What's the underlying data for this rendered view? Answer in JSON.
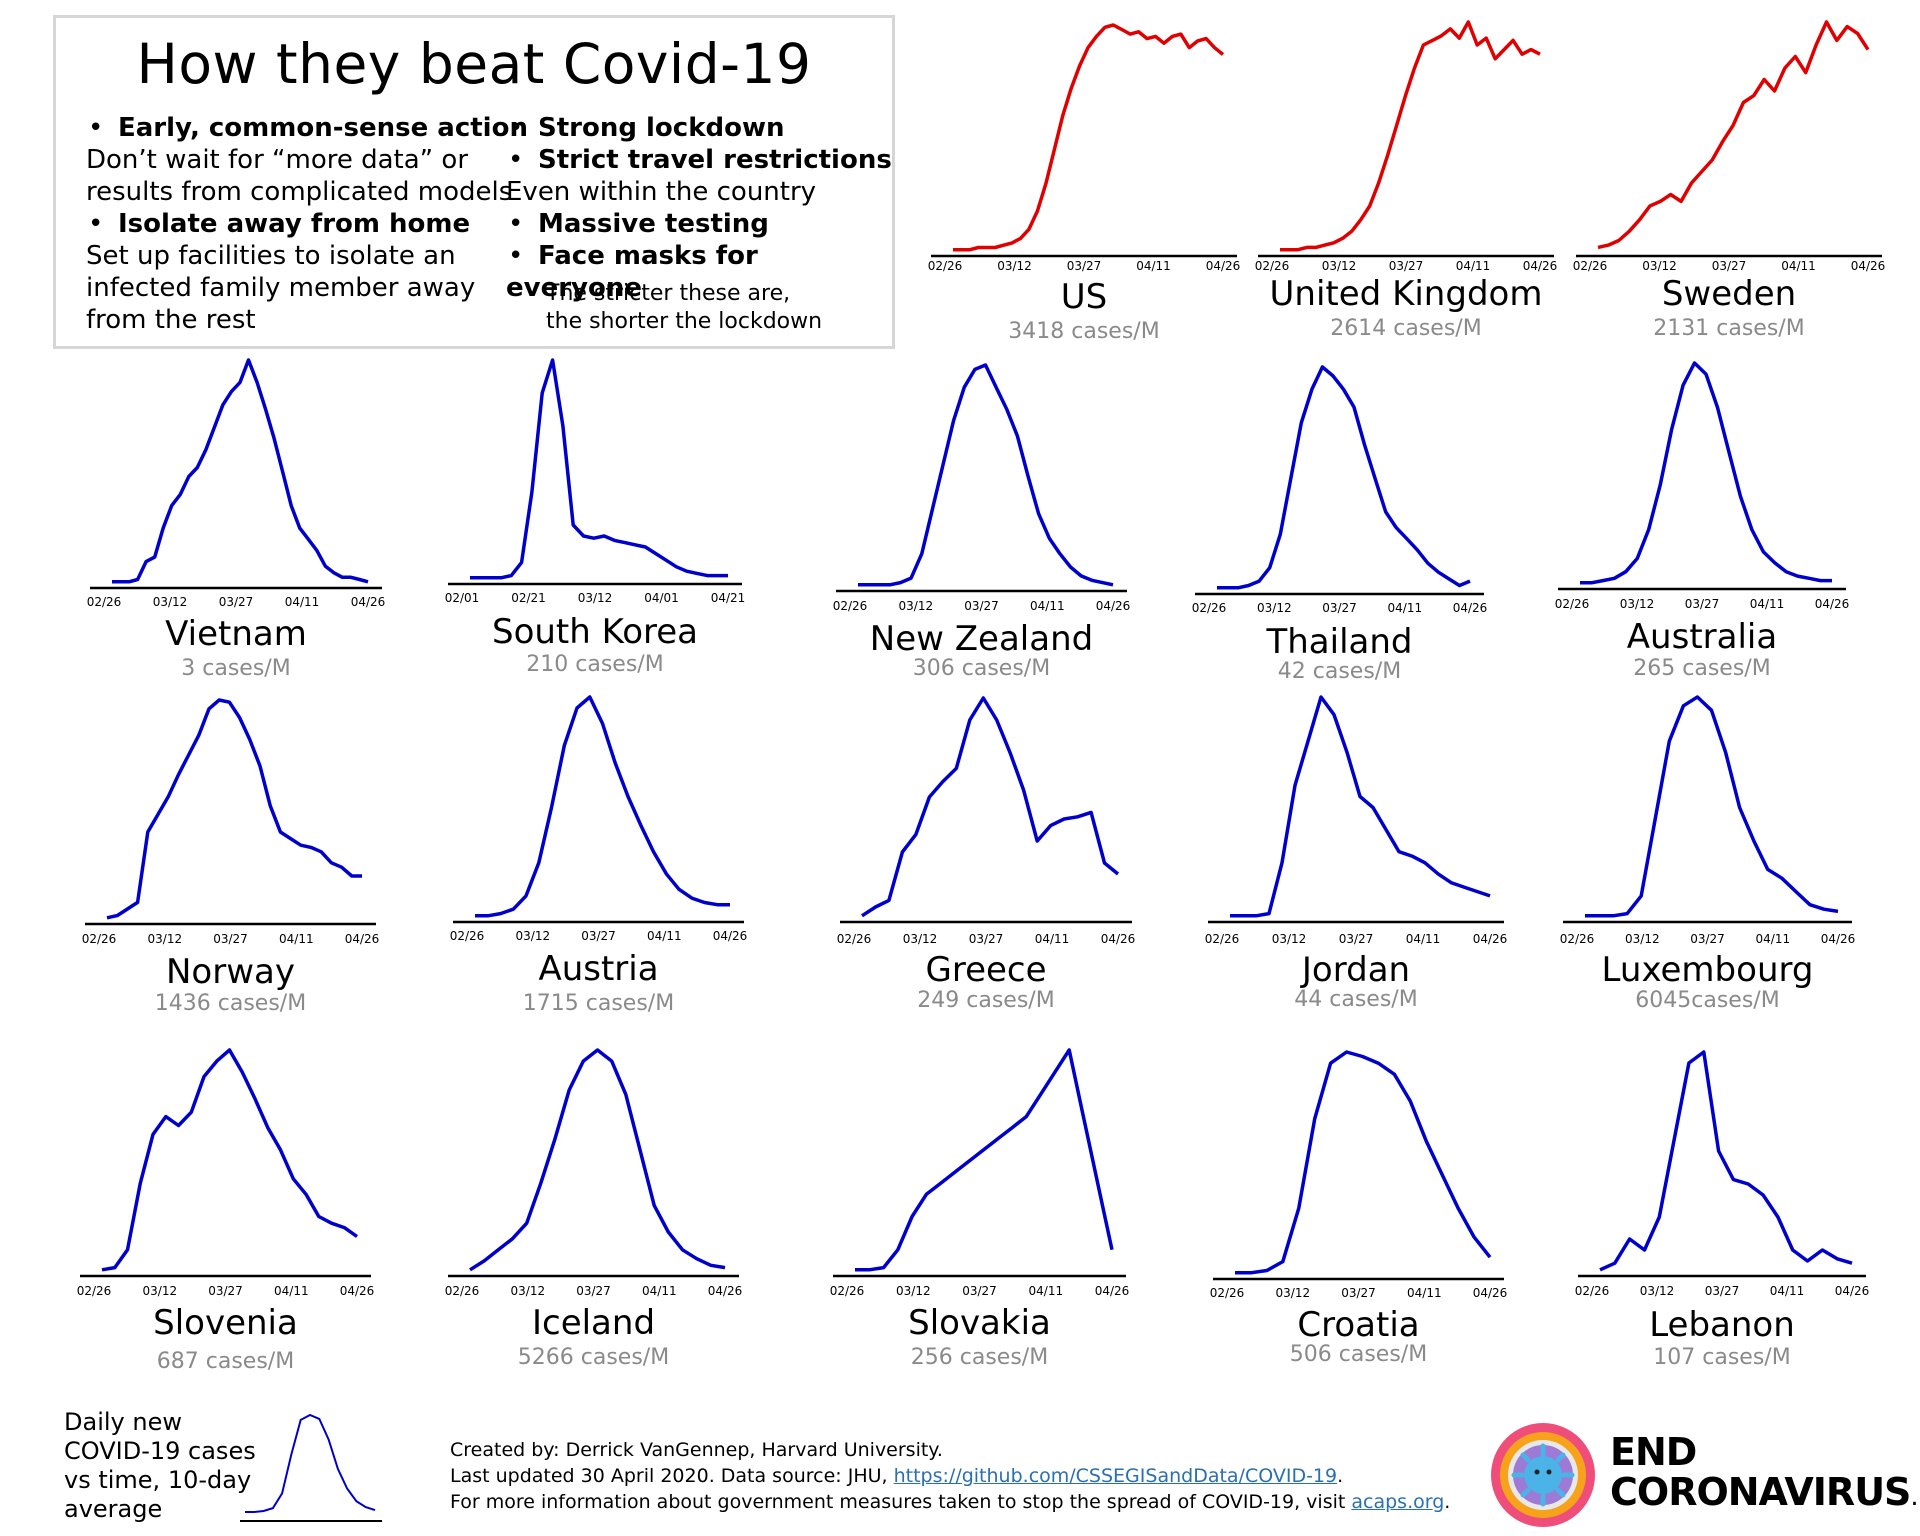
{
  "infobox": {
    "title": "How they beat Covid-19",
    "left": [
      {
        "bullet": "•",
        "text": "Early, common-sense action",
        "bold": true
      },
      {
        "bullet": "",
        "text": "Don’t wait for “more data” or",
        "bold": false
      },
      {
        "bullet": "",
        "text": "results from complicated models",
        "bold": false
      },
      {
        "bullet": "•",
        "text": "Isolate away from home",
        "bold": true
      },
      {
        "bullet": "",
        "text": "Set up facilities to isolate an",
        "bold": false
      },
      {
        "bullet": "",
        "text": "infected family member away",
        "bold": false
      },
      {
        "bullet": "",
        "text": "from the rest",
        "bold": false
      }
    ],
    "right": [
      {
        "bullet": "•",
        "text": "Strong lockdown",
        "bold": true
      },
      {
        "bullet": "•",
        "text": "Strict travel restrictions",
        "bold": true
      },
      {
        "bullet": "",
        "text": "Even within the country",
        "bold": false
      },
      {
        "bullet": "•",
        "text": "Massive testing",
        "bold": true
      },
      {
        "bullet": "•",
        "text": "Face masks for everyone",
        "bold": true
      }
    ],
    "note": [
      "The stricter these are,",
      "the shorter the lockdown"
    ]
  },
  "legend": {
    "lines": [
      "Daily new",
      "COVID-19 cases",
      "vs time, 10-day",
      "average"
    ]
  },
  "credits": {
    "line1": "Created by: Derrick VanGennep, Harvard University.",
    "line2_pre": "Last updated 30 April 2020. Data source: JHU, ",
    "line2_link": "https://github.com/CSSEGISandData/COVID-19",
    "line2_post": ".",
    "line3_pre": "For more information about government measures taken to stop the spread of COVID-19, visit ",
    "line3_link": "acaps.org",
    "line3_post": "."
  },
  "logo": {
    "line1": "END",
    "line2": "CORONAVIRUS",
    "suffix": ".org"
  },
  "colors": {
    "rising": "#e00000",
    "declining": "#0000cc",
    "axis": "#000000",
    "muted": "#8a8a8a"
  },
  "chart_data": [
    {
      "type": "line",
      "name": "US",
      "cases": "3418 cases/M",
      "ticks": [
        "02/26",
        "03/12",
        "03/27",
        "04/11",
        "04/26"
      ],
      "ylim": [
        0,
        1
      ],
      "values": [
        0.01,
        0.01,
        0.01,
        0.02,
        0.02,
        0.02,
        0.03,
        0.04,
        0.06,
        0.1,
        0.18,
        0.3,
        0.45,
        0.6,
        0.72,
        0.82,
        0.9,
        0.95,
        0.99,
        1.0,
        0.98,
        0.96,
        0.97,
        0.94,
        0.95,
        0.92,
        0.95,
        0.96,
        0.9,
        0.93,
        0.94,
        0.9,
        0.87
      ]
    },
    {
      "type": "line",
      "name": "United Kingdom",
      "cases": "2614 cases/M",
      "ticks": [
        "02/26",
        "03/12",
        "03/27",
        "04/11",
        "04/26"
      ],
      "ylim": [
        0,
        1
      ],
      "values": [
        0.01,
        0.01,
        0.01,
        0.02,
        0.02,
        0.03,
        0.04,
        0.06,
        0.09,
        0.14,
        0.2,
        0.3,
        0.42,
        0.55,
        0.68,
        0.8,
        0.9,
        0.92,
        0.94,
        0.97,
        0.93,
        1.0,
        0.9,
        0.93,
        0.84,
        0.88,
        0.92,
        0.86,
        0.88,
        0.86
      ]
    },
    {
      "type": "line",
      "name": "Sweden",
      "cases": "2131 cases/M",
      "ticks": [
        "02/26",
        "03/12",
        "03/27",
        "04/11",
        "04/26"
      ],
      "ylim": [
        0,
        1
      ],
      "values": [
        0.02,
        0.03,
        0.05,
        0.09,
        0.14,
        0.2,
        0.22,
        0.25,
        0.22,
        0.3,
        0.35,
        0.4,
        0.48,
        0.55,
        0.65,
        0.68,
        0.75,
        0.7,
        0.8,
        0.85,
        0.78,
        0.9,
        1.0,
        0.92,
        0.98,
        0.95,
        0.88
      ]
    },
    {
      "type": "line",
      "name": "Vietnam",
      "cases": "3 cases/M",
      "ticks": [
        "02/26",
        "03/12",
        "03/27",
        "04/11",
        "04/26"
      ],
      "ylim": [
        0,
        1
      ],
      "values": [
        0.01,
        0.01,
        0.01,
        0.02,
        0.1,
        0.12,
        0.25,
        0.35,
        0.4,
        0.48,
        0.52,
        0.6,
        0.7,
        0.8,
        0.86,
        0.9,
        1.0,
        0.9,
        0.78,
        0.65,
        0.5,
        0.35,
        0.25,
        0.2,
        0.15,
        0.08,
        0.05,
        0.03,
        0.03,
        0.02,
        0.01
      ]
    },
    {
      "type": "line",
      "name": "South Korea",
      "cases": "210 cases/M",
      "ticks": [
        "02/01",
        "02/21",
        "03/12",
        "04/01",
        "04/21"
      ],
      "ylim": [
        0,
        1
      ],
      "values": [
        0.01,
        0.01,
        0.01,
        0.01,
        0.02,
        0.08,
        0.4,
        0.85,
        1.0,
        0.7,
        0.25,
        0.2,
        0.19,
        0.2,
        0.18,
        0.17,
        0.16,
        0.15,
        0.12,
        0.09,
        0.06,
        0.04,
        0.03,
        0.02,
        0.02,
        0.02
      ]
    },
    {
      "type": "line",
      "name": "New Zealand",
      "cases": "306 cases/M",
      "ticks": [
        "02/26",
        "03/12",
        "03/27",
        "04/11",
        "04/26"
      ],
      "ylim": [
        0,
        1
      ],
      "values": [
        0.01,
        0.01,
        0.01,
        0.01,
        0.02,
        0.04,
        0.15,
        0.35,
        0.55,
        0.75,
        0.9,
        0.98,
        1.0,
        0.9,
        0.8,
        0.68,
        0.5,
        0.33,
        0.22,
        0.15,
        0.09,
        0.05,
        0.03,
        0.02,
        0.01
      ]
    },
    {
      "type": "line",
      "name": "Thailand",
      "cases": "42 cases/M",
      "ticks": [
        "02/26",
        "03/12",
        "03/27",
        "04/11",
        "04/26"
      ],
      "ylim": [
        0,
        1
      ],
      "values": [
        0.01,
        0.01,
        0.01,
        0.02,
        0.04,
        0.1,
        0.25,
        0.5,
        0.75,
        0.9,
        1.0,
        0.96,
        0.9,
        0.82,
        0.65,
        0.5,
        0.35,
        0.28,
        0.23,
        0.18,
        0.12,
        0.08,
        0.05,
        0.02,
        0.04
      ]
    },
    {
      "type": "line",
      "name": "Australia",
      "cases": "265 cases/M",
      "ticks": [
        "02/26",
        "03/12",
        "03/27",
        "04/11",
        "04/26"
      ],
      "ylim": [
        0,
        1
      ],
      "values": [
        0.01,
        0.01,
        0.02,
        0.03,
        0.06,
        0.12,
        0.25,
        0.45,
        0.7,
        0.9,
        1.0,
        0.95,
        0.8,
        0.6,
        0.4,
        0.25,
        0.15,
        0.1,
        0.06,
        0.04,
        0.03,
        0.02,
        0.02
      ]
    },
    {
      "type": "line",
      "name": "Norway",
      "cases": "1436 cases/M",
      "ticks": [
        "02/26",
        "03/12",
        "03/27",
        "04/11",
        "04/26"
      ],
      "ylim": [
        0,
        1
      ],
      "values": [
        0.01,
        0.02,
        0.05,
        0.08,
        0.4,
        0.48,
        0.56,
        0.66,
        0.75,
        0.84,
        0.96,
        1.0,
        0.99,
        0.92,
        0.82,
        0.7,
        0.52,
        0.4,
        0.37,
        0.34,
        0.33,
        0.31,
        0.26,
        0.24,
        0.2,
        0.2
      ]
    },
    {
      "type": "line",
      "name": "Austria",
      "cases": "1715 cases/M",
      "ticks": [
        "02/26",
        "03/12",
        "03/27",
        "04/11",
        "04/26"
      ],
      "ylim": [
        0,
        1
      ],
      "values": [
        0.01,
        0.01,
        0.02,
        0.04,
        0.1,
        0.25,
        0.5,
        0.78,
        0.95,
        1.0,
        0.88,
        0.7,
        0.55,
        0.42,
        0.3,
        0.2,
        0.13,
        0.09,
        0.07,
        0.06,
        0.06
      ]
    },
    {
      "type": "line",
      "name": "Greece",
      "cases": "249 cases/M",
      "ticks": [
        "02/26",
        "03/12",
        "03/27",
        "04/11",
        "04/26"
      ],
      "ylim": [
        0,
        1
      ],
      "values": [
        0.01,
        0.05,
        0.08,
        0.3,
        0.38,
        0.55,
        0.62,
        0.68,
        0.9,
        1.0,
        0.9,
        0.75,
        0.58,
        0.35,
        0.42,
        0.45,
        0.46,
        0.48,
        0.25,
        0.2
      ]
    },
    {
      "type": "line",
      "name": "Jordan",
      "cases": "44 cases/M",
      "ticks": [
        "02/26",
        "03/12",
        "03/27",
        "04/11",
        "04/26"
      ],
      "ylim": [
        0,
        1
      ],
      "values": [
        0.01,
        0.01,
        0.01,
        0.02,
        0.25,
        0.6,
        0.8,
        1.0,
        0.92,
        0.75,
        0.55,
        0.5,
        0.4,
        0.3,
        0.28,
        0.25,
        0.2,
        0.16,
        0.14,
        0.12,
        0.1
      ]
    },
    {
      "type": "line",
      "name": "Luxembourg",
      "cases": "6045cases/M",
      "ticks": [
        "02/26",
        "03/12",
        "03/27",
        "04/11",
        "04/26"
      ],
      "ylim": [
        0,
        1
      ],
      "values": [
        0.01,
        0.01,
        0.01,
        0.02,
        0.1,
        0.45,
        0.8,
        0.96,
        1.0,
        0.94,
        0.75,
        0.5,
        0.35,
        0.22,
        0.18,
        0.12,
        0.06,
        0.04,
        0.03
      ]
    },
    {
      "type": "line",
      "name": "Slovenia",
      "cases": "687 cases/M",
      "ticks": [
        "02/26",
        "03/12",
        "03/27",
        "04/11",
        "04/26"
      ],
      "ylim": [
        0,
        1
      ],
      "values": [
        0.01,
        0.02,
        0.1,
        0.4,
        0.62,
        0.7,
        0.66,
        0.72,
        0.88,
        0.95,
        1.0,
        0.9,
        0.78,
        0.65,
        0.55,
        0.42,
        0.35,
        0.25,
        0.22,
        0.2,
        0.16
      ]
    },
    {
      "type": "line",
      "name": "Iceland",
      "cases": "5266 cases/M",
      "ticks": [
        "02/26",
        "03/12",
        "03/27",
        "04/11",
        "04/26"
      ],
      "ylim": [
        0,
        1
      ],
      "values": [
        0.01,
        0.05,
        0.1,
        0.15,
        0.22,
        0.4,
        0.6,
        0.82,
        0.95,
        1.0,
        0.95,
        0.8,
        0.55,
        0.3,
        0.18,
        0.1,
        0.06,
        0.03,
        0.02
      ]
    },
    {
      "type": "line",
      "name": "Slovakia",
      "cases": "256 cases/M",
      "ticks": [
        "02/26",
        "03/12",
        "03/27",
        "04/11",
        "04/26"
      ],
      "ylim": [
        0,
        1
      ],
      "values": [
        0.01,
        0.01,
        0.02,
        0.1,
        0.25,
        0.35,
        0.4,
        0.45,
        0.5,
        0.55,
        0.6,
        0.65,
        0.7,
        0.8,
        0.9,
        1.0,
        0.7,
        0.4,
        0.1
      ]
    },
    {
      "type": "line",
      "name": "Croatia",
      "cases": "506 cases/M",
      "ticks": [
        "02/26",
        "03/12",
        "03/27",
        "04/11",
        "04/26"
      ],
      "ylim": [
        0,
        1
      ],
      "values": [
        0.01,
        0.01,
        0.02,
        0.06,
        0.3,
        0.7,
        0.95,
        1.0,
        0.98,
        0.95,
        0.9,
        0.78,
        0.6,
        0.45,
        0.3,
        0.17,
        0.08
      ]
    },
    {
      "type": "line",
      "name": "Lebanon",
      "cases": "107 cases/M",
      "ticks": [
        "02/26",
        "03/12",
        "03/27",
        "04/11",
        "04/26"
      ],
      "ylim": [
        0,
        1
      ],
      "values": [
        0.01,
        0.04,
        0.15,
        0.1,
        0.25,
        0.6,
        0.95,
        1.0,
        0.55,
        0.42,
        0.4,
        0.35,
        0.25,
        0.1,
        0.05,
        0.1,
        0.06,
        0.04
      ]
    }
  ]
}
